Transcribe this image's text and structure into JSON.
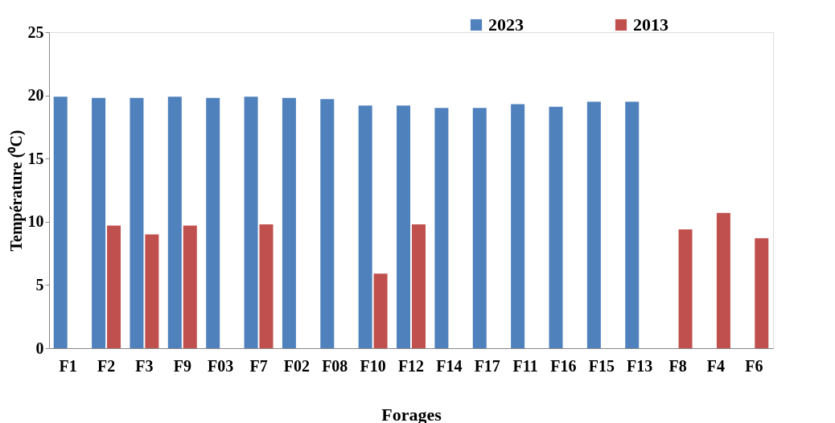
{
  "chart_data": {
    "type": "bar",
    "xlabel": "Forages",
    "ylabel": "Température (⁰C)",
    "categories": [
      "F1",
      "F2",
      "F3",
      "F9",
      "F03",
      "F7",
      "F02",
      "F08",
      "F10",
      "F12",
      "F14",
      "F17",
      "F11",
      "F16",
      "F15",
      "F13",
      "F8",
      "F4",
      "F6"
    ],
    "series": [
      {
        "name": "2023",
        "color": "#4f81bd",
        "values": [
          19.9,
          19.8,
          19.8,
          19.9,
          19.8,
          19.9,
          19.8,
          19.7,
          19.2,
          19.2,
          19.0,
          19.0,
          19.3,
          19.1,
          19.5,
          19.5,
          null,
          null,
          null
        ]
      },
      {
        "name": "2013",
        "color": "#c0504d",
        "values": [
          null,
          9.7,
          9.0,
          9.7,
          null,
          9.8,
          null,
          null,
          5.9,
          9.8,
          null,
          null,
          null,
          null,
          null,
          null,
          9.4,
          10.7,
          8.7
        ]
      }
    ],
    "ylim": [
      0,
      25
    ],
    "yticks": [
      0,
      5,
      10,
      15,
      20,
      25
    ],
    "grid": false,
    "legend": "top"
  }
}
